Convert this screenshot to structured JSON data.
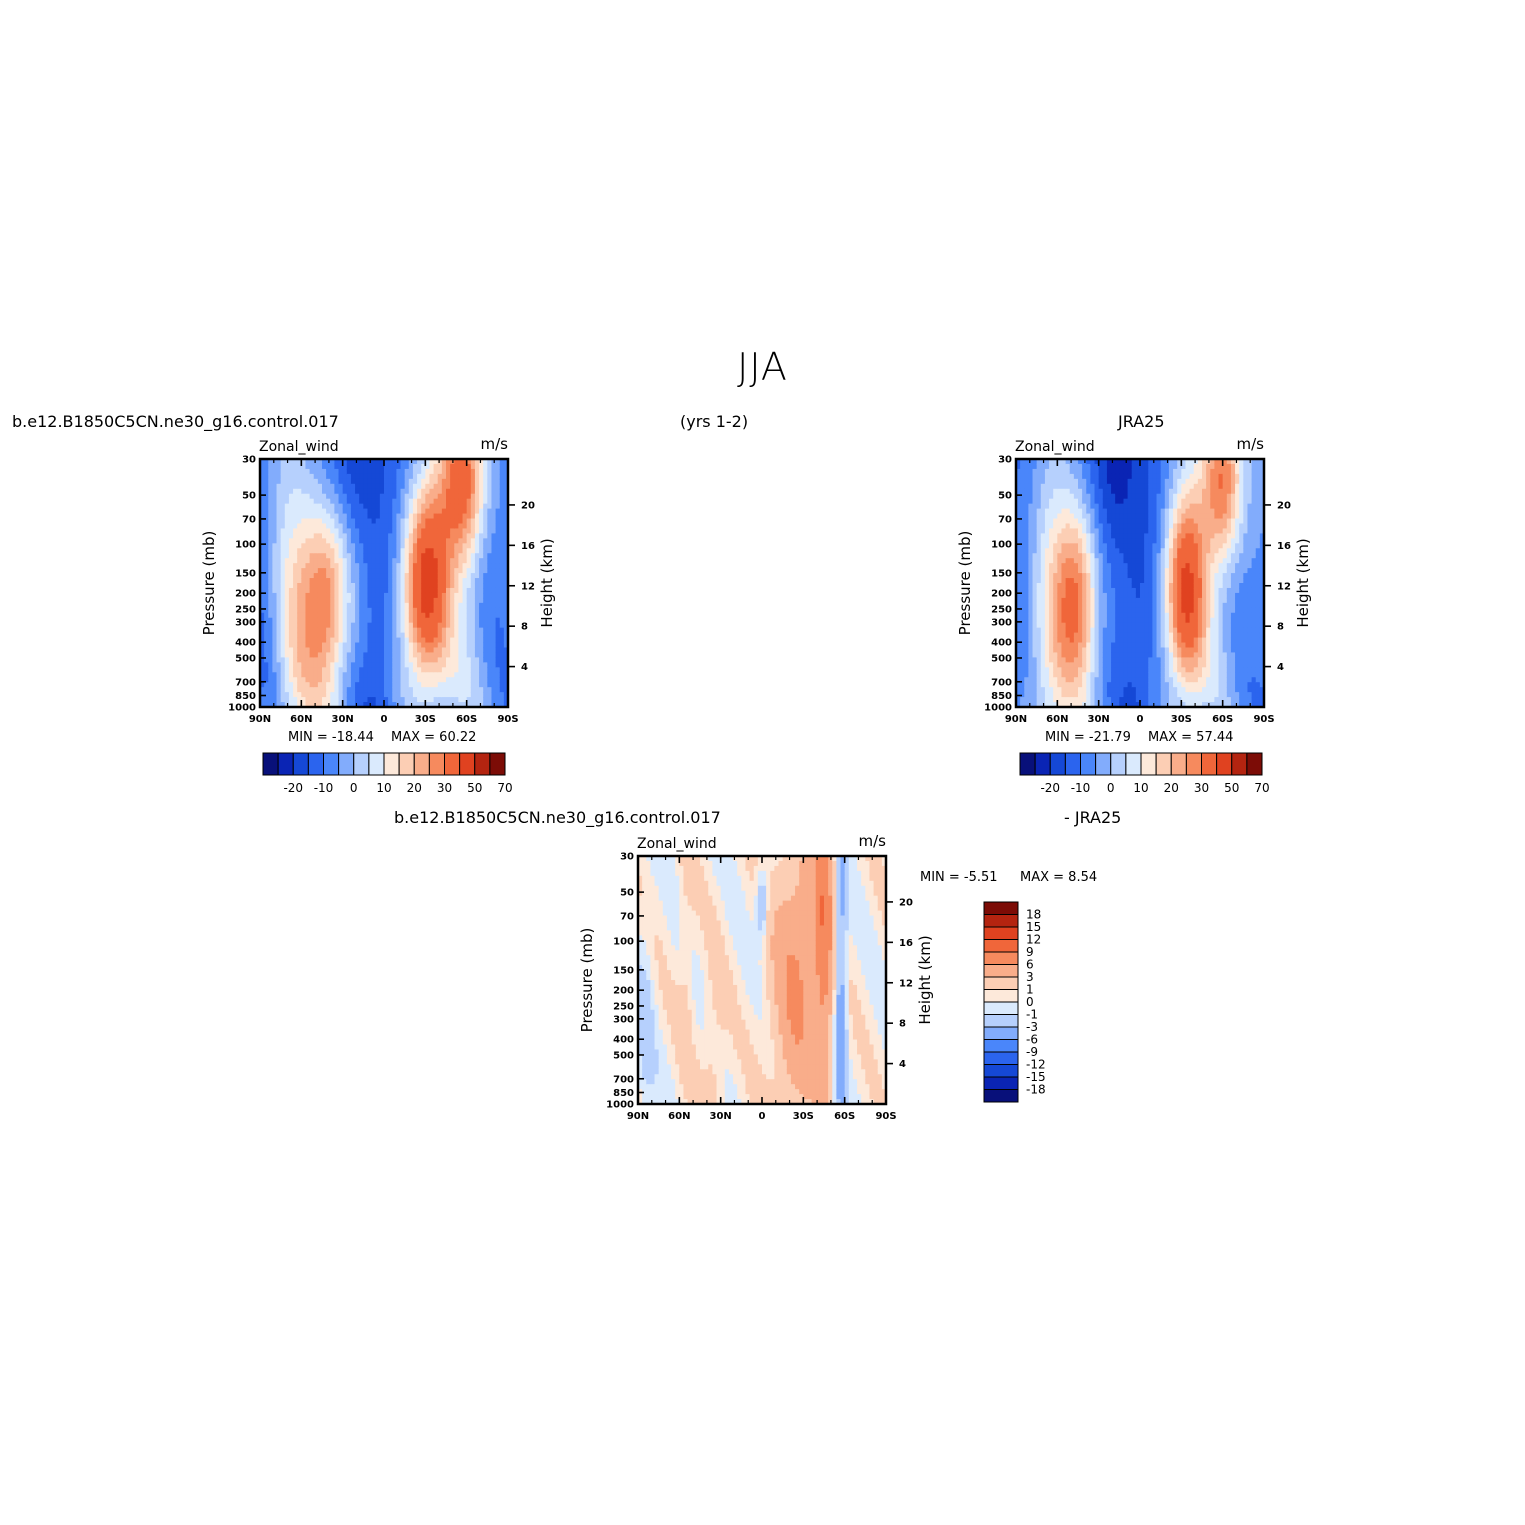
{
  "page": {
    "title": "JJA",
    "case_name": "b.e12.B1850C5CN.ne30_g16.control.017",
    "years": "(yrs 1-2)",
    "obs_name": "JRA25",
    "diff_case_name": "b.e12.B1850C5CN.ne30_g16.control.017",
    "diff_obs_label": "- JRA25"
  },
  "colors": {
    "abs_scale": [
      "#08107a",
      "#0a24b4",
      "#1548d6",
      "#2b64ee",
      "#4a86fa",
      "#82acfc",
      "#b6d0fd",
      "#daeafd",
      "#fde9da",
      "#fcceb4",
      "#f9ad8a",
      "#f68a5e",
      "#f0663a",
      "#e04220",
      "#b42410",
      "#7c0c06"
    ],
    "diff_scale": [
      "#08107a",
      "#0a24b4",
      "#1548d6",
      "#2b64ee",
      "#4a86fa",
      "#82acfc",
      "#b6d0fd",
      "#daeafd",
      "#fde9da",
      "#fcceb4",
      "#f9ad8a",
      "#f68a5e",
      "#f0663a",
      "#e04220",
      "#b42410",
      "#7c0c06"
    ]
  },
  "chart_data": [
    {
      "type": "heatmap",
      "title": "b.e12.B1850C5CN.ne30_g16.control.017",
      "subtitle": "(yrs 1-2)",
      "left_label": "Zonal_wind",
      "units": "m/s",
      "ylabel": "Pressure (mb)",
      "y2label": "Height (km)",
      "x_ticks": [
        "90N",
        "60N",
        "30N",
        "0",
        "30S",
        "60S",
        "90S"
      ],
      "y_ticks": [
        "30",
        "50",
        "70",
        "100",
        "150",
        "200",
        "250",
        "300",
        "400",
        "500",
        "700",
        "850",
        "1000"
      ],
      "y2_ticks": [
        "20",
        "16",
        "12",
        "8",
        "4"
      ],
      "min_label": "MIN =  -18.44",
      "max_label": "MAX =   60.22",
      "min": -18.44,
      "max": 60.22,
      "colorbar_labels": [
        "-20",
        "-10",
        "0",
        "10",
        "20",
        "30",
        "50",
        "70"
      ],
      "contour_levels": [
        -25,
        -20,
        -15,
        -10,
        -5,
        0,
        5,
        10,
        15,
        20,
        25,
        30,
        40,
        50,
        60,
        70
      ],
      "jets": [
        {
          "lat": 40,
          "p": 200,
          "value": 20
        },
        {
          "lat": -28,
          "p": 200,
          "value": 45
        },
        {
          "lat": -60,
          "p": 30,
          "value": 60
        },
        {
          "lat": 20,
          "p": 30,
          "value": -18
        }
      ]
    },
    {
      "type": "heatmap",
      "title": "JRA25",
      "left_label": "Zonal_wind",
      "units": "m/s",
      "ylabel": "Pressure (mb)",
      "y2label": "Height (km)",
      "x_ticks": [
        "90N",
        "60N",
        "30N",
        "0",
        "30S",
        "60S",
        "90S"
      ],
      "y_ticks": [
        "30",
        "50",
        "70",
        "100",
        "150",
        "200",
        "250",
        "300",
        "400",
        "500",
        "700",
        "850",
        "1000"
      ],
      "y2_ticks": [
        "20",
        "16",
        "12",
        "8",
        "4"
      ],
      "min_label": "MIN =  -21.79",
      "max_label": "MAX =   57.44",
      "min": -21.79,
      "max": 57.44,
      "colorbar_labels": [
        "-20",
        "-10",
        "0",
        "10",
        "20",
        "30",
        "50",
        "70"
      ],
      "contour_levels": [
        -25,
        -20,
        -15,
        -10,
        -5,
        0,
        5,
        10,
        15,
        20,
        25,
        30,
        40,
        50,
        60,
        70
      ],
      "jets": [
        {
          "lat": 45,
          "p": 200,
          "value": 20
        },
        {
          "lat": -30,
          "p": 200,
          "value": 42
        },
        {
          "lat": -60,
          "p": 30,
          "value": 57
        },
        {
          "lat": 18,
          "p": 30,
          "value": -21
        }
      ]
    },
    {
      "type": "heatmap",
      "title": "b.e12.B1850C5CN.ne30_g16.control.017",
      "subtitle": "- JRA25",
      "left_label": "Zonal_wind",
      "units": "m/s",
      "ylabel": "Pressure (mb)",
      "y2label": "Height (km)",
      "x_ticks": [
        "90N",
        "60N",
        "30N",
        "0",
        "30S",
        "60S",
        "90S"
      ],
      "y_ticks": [
        "30",
        "50",
        "70",
        "100",
        "150",
        "200",
        "250",
        "300",
        "400",
        "500",
        "700",
        "850",
        "1000"
      ],
      "y2_ticks": [
        "20",
        "16",
        "12",
        "8",
        "4"
      ],
      "min_label": "MIN =   -5.51",
      "max_label": "MAX =    8.54",
      "min": -5.51,
      "max": 8.54,
      "colorbar_labels": [
        "18",
        "15",
        "12",
        "9",
        "6",
        "3",
        "1",
        "0",
        "-1",
        "-3",
        "-6",
        "-9",
        "-12",
        "-15",
        "-18"
      ],
      "contour_levels": [
        -18,
        -15,
        -12,
        -9,
        -6,
        -3,
        -1,
        0,
        1,
        3,
        6,
        9,
        12,
        15,
        18
      ]
    }
  ]
}
